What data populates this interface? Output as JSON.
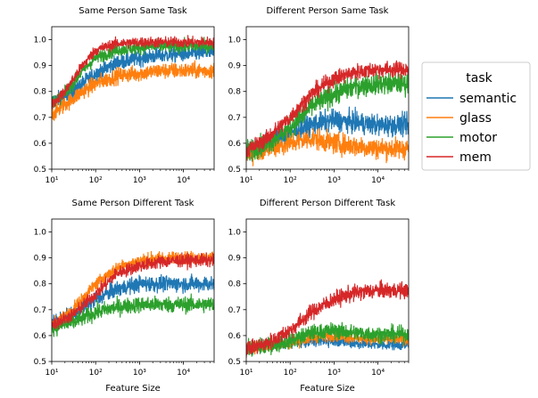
{
  "legend": {
    "title": "task",
    "placement": "right",
    "entries": [
      {
        "name": "semantic",
        "color": "#1f77b4"
      },
      {
        "name": "glass",
        "color": "#ff7f0e"
      },
      {
        "name": "motor",
        "color": "#2ca02c"
      },
      {
        "name": "mem",
        "color": "#d62728"
      }
    ]
  },
  "chart_data": [
    {
      "type": "line",
      "title": "Same Person Same Task",
      "xlabel": "",
      "xscale": "log",
      "xlim": [
        10,
        50000
      ],
      "ylim": [
        0.5,
        1.05
      ],
      "xticks": [
        {
          "value": 10,
          "label": "10¹"
        },
        {
          "value": 100,
          "label": "10²"
        },
        {
          "value": 1000,
          "label": "10³"
        },
        {
          "value": 10000,
          "label": "10⁴"
        }
      ],
      "yticks": [
        "0.5",
        "0.6",
        "0.7",
        "0.8",
        "0.9",
        "1.0"
      ],
      "series": [
        {
          "name": "semantic",
          "x": [
            10,
            20,
            50,
            100,
            300,
            1000,
            3000,
            10000,
            50000
          ],
          "y": [
            0.76,
            0.78,
            0.83,
            0.87,
            0.91,
            0.93,
            0.94,
            0.945,
            0.95
          ],
          "noise": 0.015
        },
        {
          "name": "glass",
          "x": [
            10,
            20,
            50,
            100,
            300,
            1000,
            3000,
            10000,
            50000
          ],
          "y": [
            0.71,
            0.75,
            0.8,
            0.83,
            0.86,
            0.87,
            0.88,
            0.88,
            0.88
          ],
          "noise": 0.015
        },
        {
          "name": "motor",
          "x": [
            10,
            20,
            50,
            100,
            300,
            1000,
            3000,
            10000,
            50000
          ],
          "y": [
            0.76,
            0.79,
            0.88,
            0.93,
            0.96,
            0.97,
            0.975,
            0.975,
            0.975
          ],
          "noise": 0.012
        },
        {
          "name": "mem",
          "x": [
            10,
            20,
            50,
            100,
            300,
            1000,
            3000,
            10000,
            50000
          ],
          "y": [
            0.75,
            0.8,
            0.9,
            0.96,
            0.985,
            0.99,
            0.99,
            0.99,
            0.99
          ],
          "noise": 0.01
        }
      ]
    },
    {
      "type": "line",
      "title": "Different Person Same Task",
      "xlabel": "",
      "xscale": "log",
      "xlim": [
        10,
        50000
      ],
      "ylim": [
        0.5,
        1.05
      ],
      "xticks": [
        {
          "value": 10,
          "label": "10¹"
        },
        {
          "value": 100,
          "label": "10²"
        },
        {
          "value": 1000,
          "label": "10³"
        },
        {
          "value": 10000,
          "label": "10⁴"
        }
      ],
      "yticks": [
        "0.5",
        "0.6",
        "0.7",
        "0.8",
        "0.9",
        "1.0"
      ],
      "series": [
        {
          "name": "semantic",
          "x": [
            10,
            30,
            100,
            300,
            1000,
            3000,
            10000,
            50000
          ],
          "y": [
            0.57,
            0.6,
            0.64,
            0.67,
            0.69,
            0.68,
            0.67,
            0.67
          ],
          "noise": 0.02
        },
        {
          "name": "glass",
          "x": [
            10,
            30,
            100,
            300,
            1000,
            3000,
            10000,
            50000
          ],
          "y": [
            0.56,
            0.58,
            0.6,
            0.62,
            0.6,
            0.59,
            0.58,
            0.58
          ],
          "noise": 0.02
        },
        {
          "name": "motor",
          "x": [
            10,
            30,
            100,
            300,
            1000,
            3000,
            10000,
            50000
          ],
          "y": [
            0.57,
            0.6,
            0.66,
            0.74,
            0.79,
            0.82,
            0.83,
            0.83
          ],
          "noise": 0.02
        },
        {
          "name": "mem",
          "x": [
            10,
            30,
            100,
            300,
            1000,
            3000,
            10000,
            50000
          ],
          "y": [
            0.57,
            0.62,
            0.7,
            0.79,
            0.85,
            0.875,
            0.885,
            0.885
          ],
          "noise": 0.015
        }
      ]
    },
    {
      "type": "line",
      "title": "Same Person Different Task",
      "xlabel": "Feature Size",
      "xscale": "log",
      "xlim": [
        10,
        50000
      ],
      "ylim": [
        0.5,
        1.05
      ],
      "xticks": [
        {
          "value": 10,
          "label": "10¹"
        },
        {
          "value": 100,
          "label": "10²"
        },
        {
          "value": 1000,
          "label": "10³"
        },
        {
          "value": 10000,
          "label": "10⁴"
        }
      ],
      "yticks": [
        "0.5",
        "0.6",
        "0.7",
        "0.8",
        "0.9",
        "1.0"
      ],
      "series": [
        {
          "name": "semantic",
          "x": [
            10,
            30,
            100,
            300,
            1000,
            3000,
            10000,
            50000
          ],
          "y": [
            0.65,
            0.68,
            0.74,
            0.78,
            0.8,
            0.8,
            0.8,
            0.8
          ],
          "noise": 0.015
        },
        {
          "name": "glass",
          "x": [
            10,
            30,
            100,
            300,
            1000,
            3000,
            10000,
            50000
          ],
          "y": [
            0.64,
            0.7,
            0.8,
            0.86,
            0.89,
            0.9,
            0.9,
            0.9
          ],
          "noise": 0.012
        },
        {
          "name": "motor",
          "x": [
            10,
            30,
            100,
            300,
            1000,
            3000,
            10000,
            50000
          ],
          "y": [
            0.63,
            0.65,
            0.69,
            0.71,
            0.72,
            0.72,
            0.72,
            0.72
          ],
          "noise": 0.015
        },
        {
          "name": "mem",
          "x": [
            10,
            30,
            100,
            300,
            1000,
            3000,
            10000,
            50000
          ],
          "y": [
            0.64,
            0.68,
            0.76,
            0.84,
            0.87,
            0.885,
            0.89,
            0.89
          ],
          "noise": 0.012
        }
      ]
    },
    {
      "type": "line",
      "title": "Different Person Different Task",
      "xlabel": "Feature Size",
      "xscale": "log",
      "xlim": [
        10,
        50000
      ],
      "ylim": [
        0.5,
        1.05
      ],
      "xticks": [
        {
          "value": 10,
          "label": "10¹"
        },
        {
          "value": 100,
          "label": "10²"
        },
        {
          "value": 1000,
          "label": "10³"
        },
        {
          "value": 10000,
          "label": "10⁴"
        }
      ],
      "yticks": [
        "0.5",
        "0.6",
        "0.7",
        "0.8",
        "0.9",
        "1.0"
      ],
      "series": [
        {
          "name": "semantic",
          "x": [
            10,
            30,
            100,
            300,
            1000,
            3000,
            10000,
            50000
          ],
          "y": [
            0.55,
            0.56,
            0.57,
            0.58,
            0.58,
            0.57,
            0.565,
            0.565
          ],
          "noise": 0.01
        },
        {
          "name": "glass",
          "x": [
            10,
            30,
            100,
            300,
            1000,
            3000,
            10000,
            50000
          ],
          "y": [
            0.55,
            0.56,
            0.57,
            0.59,
            0.6,
            0.59,
            0.585,
            0.585
          ],
          "noise": 0.01
        },
        {
          "name": "motor",
          "x": [
            10,
            30,
            100,
            300,
            1000,
            3000,
            10000,
            50000
          ],
          "y": [
            0.55,
            0.56,
            0.58,
            0.61,
            0.62,
            0.61,
            0.605,
            0.605
          ],
          "noise": 0.015
        },
        {
          "name": "mem",
          "x": [
            10,
            30,
            100,
            300,
            1000,
            3000,
            10000,
            50000
          ],
          "y": [
            0.55,
            0.57,
            0.62,
            0.69,
            0.74,
            0.765,
            0.775,
            0.775
          ],
          "noise": 0.015
        }
      ]
    }
  ]
}
